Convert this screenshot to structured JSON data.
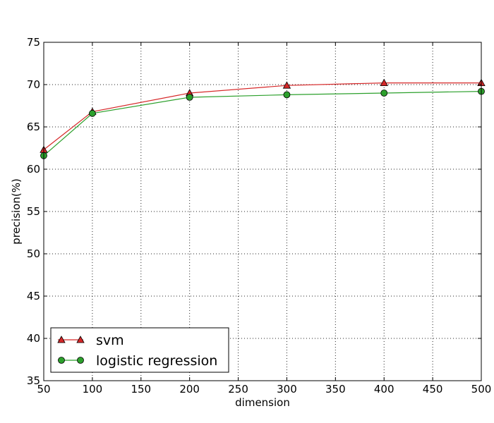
{
  "chart_data": {
    "type": "line",
    "title": "",
    "xlabel": "dimension",
    "ylabel": "precision(%)",
    "xlim": [
      50,
      500
    ],
    "ylim": [
      35,
      75
    ],
    "xticks": [
      50,
      100,
      150,
      200,
      250,
      300,
      350,
      400,
      450,
      500
    ],
    "yticks": [
      35,
      40,
      45,
      50,
      55,
      60,
      65,
      70,
      75
    ],
    "grid": true,
    "legend_position": "lower-left",
    "x": [
      50,
      100,
      200,
      300,
      400,
      500
    ],
    "series": [
      {
        "name": "svm",
        "values": [
          62.3,
          66.8,
          69.0,
          69.9,
          70.2,
          70.2
        ],
        "color": "#d62728",
        "marker": "triangle"
      },
      {
        "name": "logistic regression",
        "values": [
          61.6,
          66.6,
          68.5,
          68.8,
          69.0,
          69.2
        ],
        "color": "#2ca02c",
        "marker": "circle"
      }
    ]
  }
}
